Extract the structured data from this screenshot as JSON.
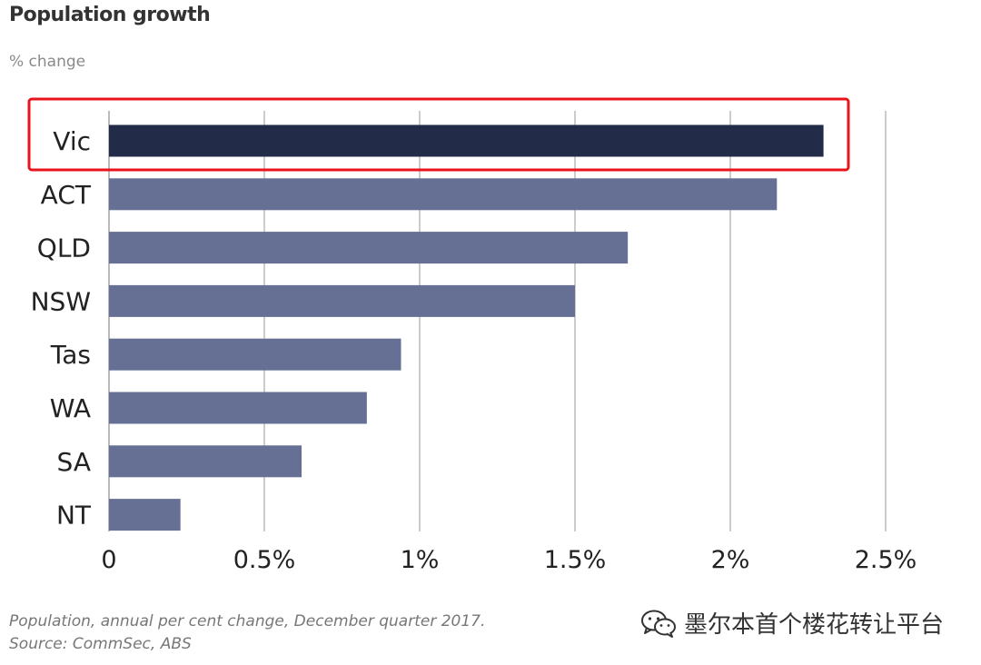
{
  "chart_data": {
    "type": "bar",
    "orientation": "horizontal",
    "title": "Population growth",
    "subtitle": "% change",
    "categories": [
      "Vic",
      "ACT",
      "QLD",
      "NSW",
      "Tas",
      "WA",
      "SA",
      "NT"
    ],
    "values": [
      2.3,
      2.15,
      1.67,
      1.5,
      0.94,
      0.83,
      0.62,
      0.23
    ],
    "xlim": [
      0,
      2.5
    ],
    "xticks": [
      {
        "value": 0,
        "label": "0"
      },
      {
        "value": 0.5,
        "label": "0.5%"
      },
      {
        "value": 1,
        "label": "1%"
      },
      {
        "value": 1.5,
        "label": "1.5%"
      },
      {
        "value": 2,
        "label": "2%"
      },
      {
        "value": 2.5,
        "label": "2.5%"
      }
    ],
    "grid": true,
    "highlight_category": "Vic",
    "colors": {
      "highlight_bar": "#222b47",
      "bar": "#667094",
      "highlight_box": "#e8141b",
      "grid": "#cccccc"
    }
  },
  "notes": [
    "Population, annual per cent change, December quarter 2017.",
    "Source: CommSec, ABS"
  ],
  "watermark": {
    "icon": "wechat-icon",
    "text": "墨尔本首个楼花转让平台"
  }
}
